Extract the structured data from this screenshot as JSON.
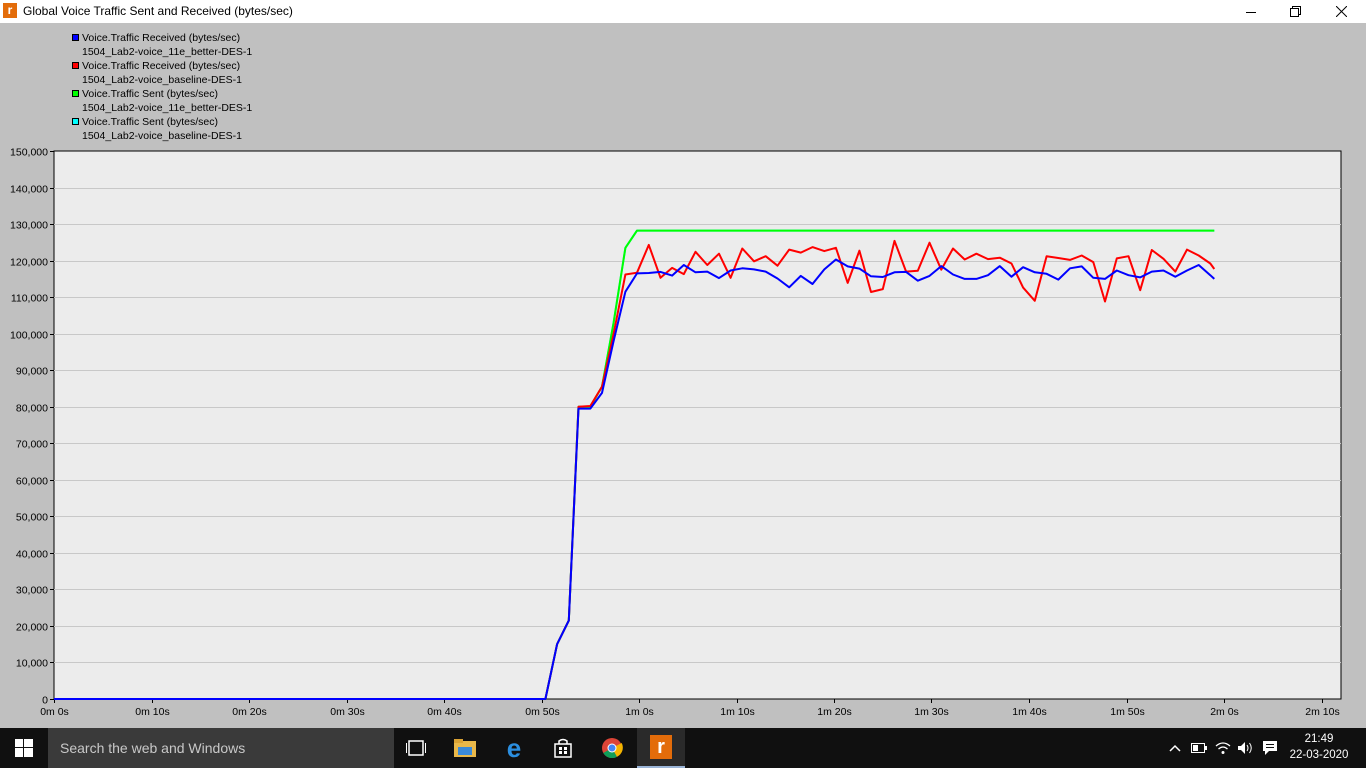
{
  "window": {
    "title": "Global Voice Traffic Sent and Received (bytes/sec)",
    "app_icon_letter": "r"
  },
  "legend": [
    {
      "name": "Voice.Traffic Received (bytes/sec)",
      "scenario": "1504_Lab2-voice_11e_better-DES-1",
      "color": "#0000ff"
    },
    {
      "name": "Voice.Traffic Received (bytes/sec)",
      "scenario": "1504_Lab2-voice_baseline-DES-1",
      "color": "#ff0000"
    },
    {
      "name": "Voice.Traffic Sent (bytes/sec)",
      "scenario": "1504_Lab2-voice_11e_better-DES-1",
      "color": "#00ff00"
    },
    {
      "name": "Voice.Traffic Sent (bytes/sec)",
      "scenario": "1504_Lab2-voice_baseline-DES-1",
      "color": "#00ffff"
    }
  ],
  "chart_data": {
    "type": "line",
    "title": "Global Voice Traffic Sent and Received (bytes/sec)",
    "xlabel": "",
    "ylabel": "",
    "xlim": [
      0,
      132
    ],
    "ylim": [
      0,
      150000
    ],
    "grid": true,
    "legend_position": "top-left",
    "y_ticks": [
      "0",
      "10,000",
      "20,000",
      "30,000",
      "40,000",
      "50,000",
      "60,000",
      "70,000",
      "80,000",
      "90,000",
      "100,000",
      "110,000",
      "120,000",
      "130,000",
      "140,000",
      "150,000"
    ],
    "x_ticks": [
      "0m 0s",
      "0m 10s",
      "0m 20s",
      "0m 30s",
      "0m 40s",
      "0m 50s",
      "1m 0s",
      "1m 10s",
      "1m 20s",
      "1m 30s",
      "1m 40s",
      "1m 50s",
      "2m 0s",
      "2m 10s"
    ],
    "series": [
      {
        "name": "Voice.Traffic Sent (bytes/sec) 1504_Lab2-voice_baseline-DES-1",
        "color": "#00ffff",
        "x": [
          0,
          50.4,
          51.6,
          52.8,
          53.8,
          55.0,
          56.2,
          57.4,
          58.6,
          59.8,
          60.4,
          119.0
        ],
        "y": [
          0,
          0,
          15000,
          21500,
          80000,
          80000,
          85500,
          103000,
          123500,
          128200,
          128200,
          128200
        ]
      },
      {
        "name": "Voice.Traffic Sent (bytes/sec) 1504_Lab2-voice_11e_better-DES-1",
        "color": "#00ff00",
        "x": [
          0,
          50.4,
          51.6,
          52.8,
          53.8,
          55.0,
          56.2,
          57.4,
          58.6,
          59.8,
          60.4,
          119.0
        ],
        "y": [
          0,
          0,
          15000,
          21500,
          80000,
          80000,
          85500,
          103000,
          123500,
          128200,
          128200,
          128200
        ]
      },
      {
        "name": "Voice.Traffic Received (bytes/sec) 1504_Lab2-voice_baseline-DES-1",
        "color": "#ff0000",
        "x": [
          0,
          50.4,
          51.6,
          52.8,
          53.8,
          55.0,
          56.2,
          57.4,
          58.6,
          59.8,
          61.0,
          62.2,
          63.4,
          64.6,
          65.8,
          67.0,
          68.2,
          69.4,
          70.6,
          71.8,
          73.0,
          74.2,
          75.4,
          76.6,
          77.8,
          79.0,
          80.2,
          81.4,
          82.6,
          83.8,
          85.0,
          86.2,
          87.4,
          88.6,
          89.8,
          91.0,
          92.2,
          93.4,
          94.6,
          95.8,
          97.0,
          98.2,
          99.4,
          100.6,
          101.8,
          103.0,
          104.2,
          105.4,
          106.6,
          107.8,
          109.0,
          110.2,
          111.4,
          112.6,
          113.8,
          115.0,
          116.2,
          117.4,
          118.6,
          119.0
        ],
        "y": [
          0,
          0,
          15000,
          21500,
          80000,
          80200,
          85500,
          100000,
          116200,
          116700,
          124300,
          115300,
          118000,
          116300,
          122400,
          118800,
          121900,
          115300,
          123300,
          119800,
          121200,
          118600,
          123000,
          122200,
          123700,
          122600,
          123500,
          113900,
          122700,
          111400,
          112200,
          125400,
          117000,
          117200,
          124900,
          117500,
          123300,
          120300,
          121900,
          120400,
          120800,
          119200,
          112600,
          109000,
          121200,
          120700,
          120200,
          121400,
          119600,
          108800,
          120600,
          121200,
          111900,
          122900,
          120500,
          117000,
          123000,
          121400,
          119200,
          117700
        ]
      },
      {
        "name": "Voice.Traffic Received (bytes/sec) 1504_Lab2-voice_11e_better-DES-1",
        "color": "#0000ff",
        "x": [
          0,
          50.4,
          51.6,
          52.8,
          53.8,
          55.0,
          56.2,
          57.4,
          58.6,
          59.8,
          61.0,
          62.2,
          63.4,
          64.6,
          65.8,
          67.0,
          68.2,
          69.4,
          70.6,
          71.8,
          73.0,
          74.2,
          75.4,
          76.6,
          77.8,
          79.0,
          80.2,
          81.4,
          82.6,
          83.8,
          85.0,
          86.2,
          87.4,
          88.6,
          89.8,
          91.0,
          92.2,
          93.4,
          94.6,
          95.8,
          97.0,
          98.2,
          99.4,
          100.6,
          101.8,
          103.0,
          104.2,
          105.4,
          106.6,
          107.8,
          109.0,
          110.2,
          111.4,
          112.6,
          113.8,
          115.0,
          116.2,
          117.4,
          118.6,
          119.0
        ],
        "y": [
          0,
          0,
          15000,
          21500,
          79500,
          79500,
          83800,
          98000,
          111500,
          116500,
          116600,
          116900,
          115900,
          118800,
          116800,
          117000,
          115200,
          117300,
          117900,
          117600,
          117000,
          115100,
          112700,
          115800,
          113600,
          117600,
          120300,
          118400,
          117800,
          115700,
          115500,
          116800,
          116900,
          114500,
          115800,
          118500,
          116200,
          115000,
          115000,
          116000,
          118500,
          115600,
          118200,
          116800,
          116400,
          114800,
          117900,
          118400,
          115300,
          115000,
          117300,
          116000,
          115400,
          117000,
          117300,
          115600,
          117300,
          118800,
          116000,
          115000
        ]
      }
    ]
  },
  "taskbar": {
    "search_placeholder": "Search the web and Windows",
    "time": "21:49",
    "date": "22-03-2020"
  }
}
